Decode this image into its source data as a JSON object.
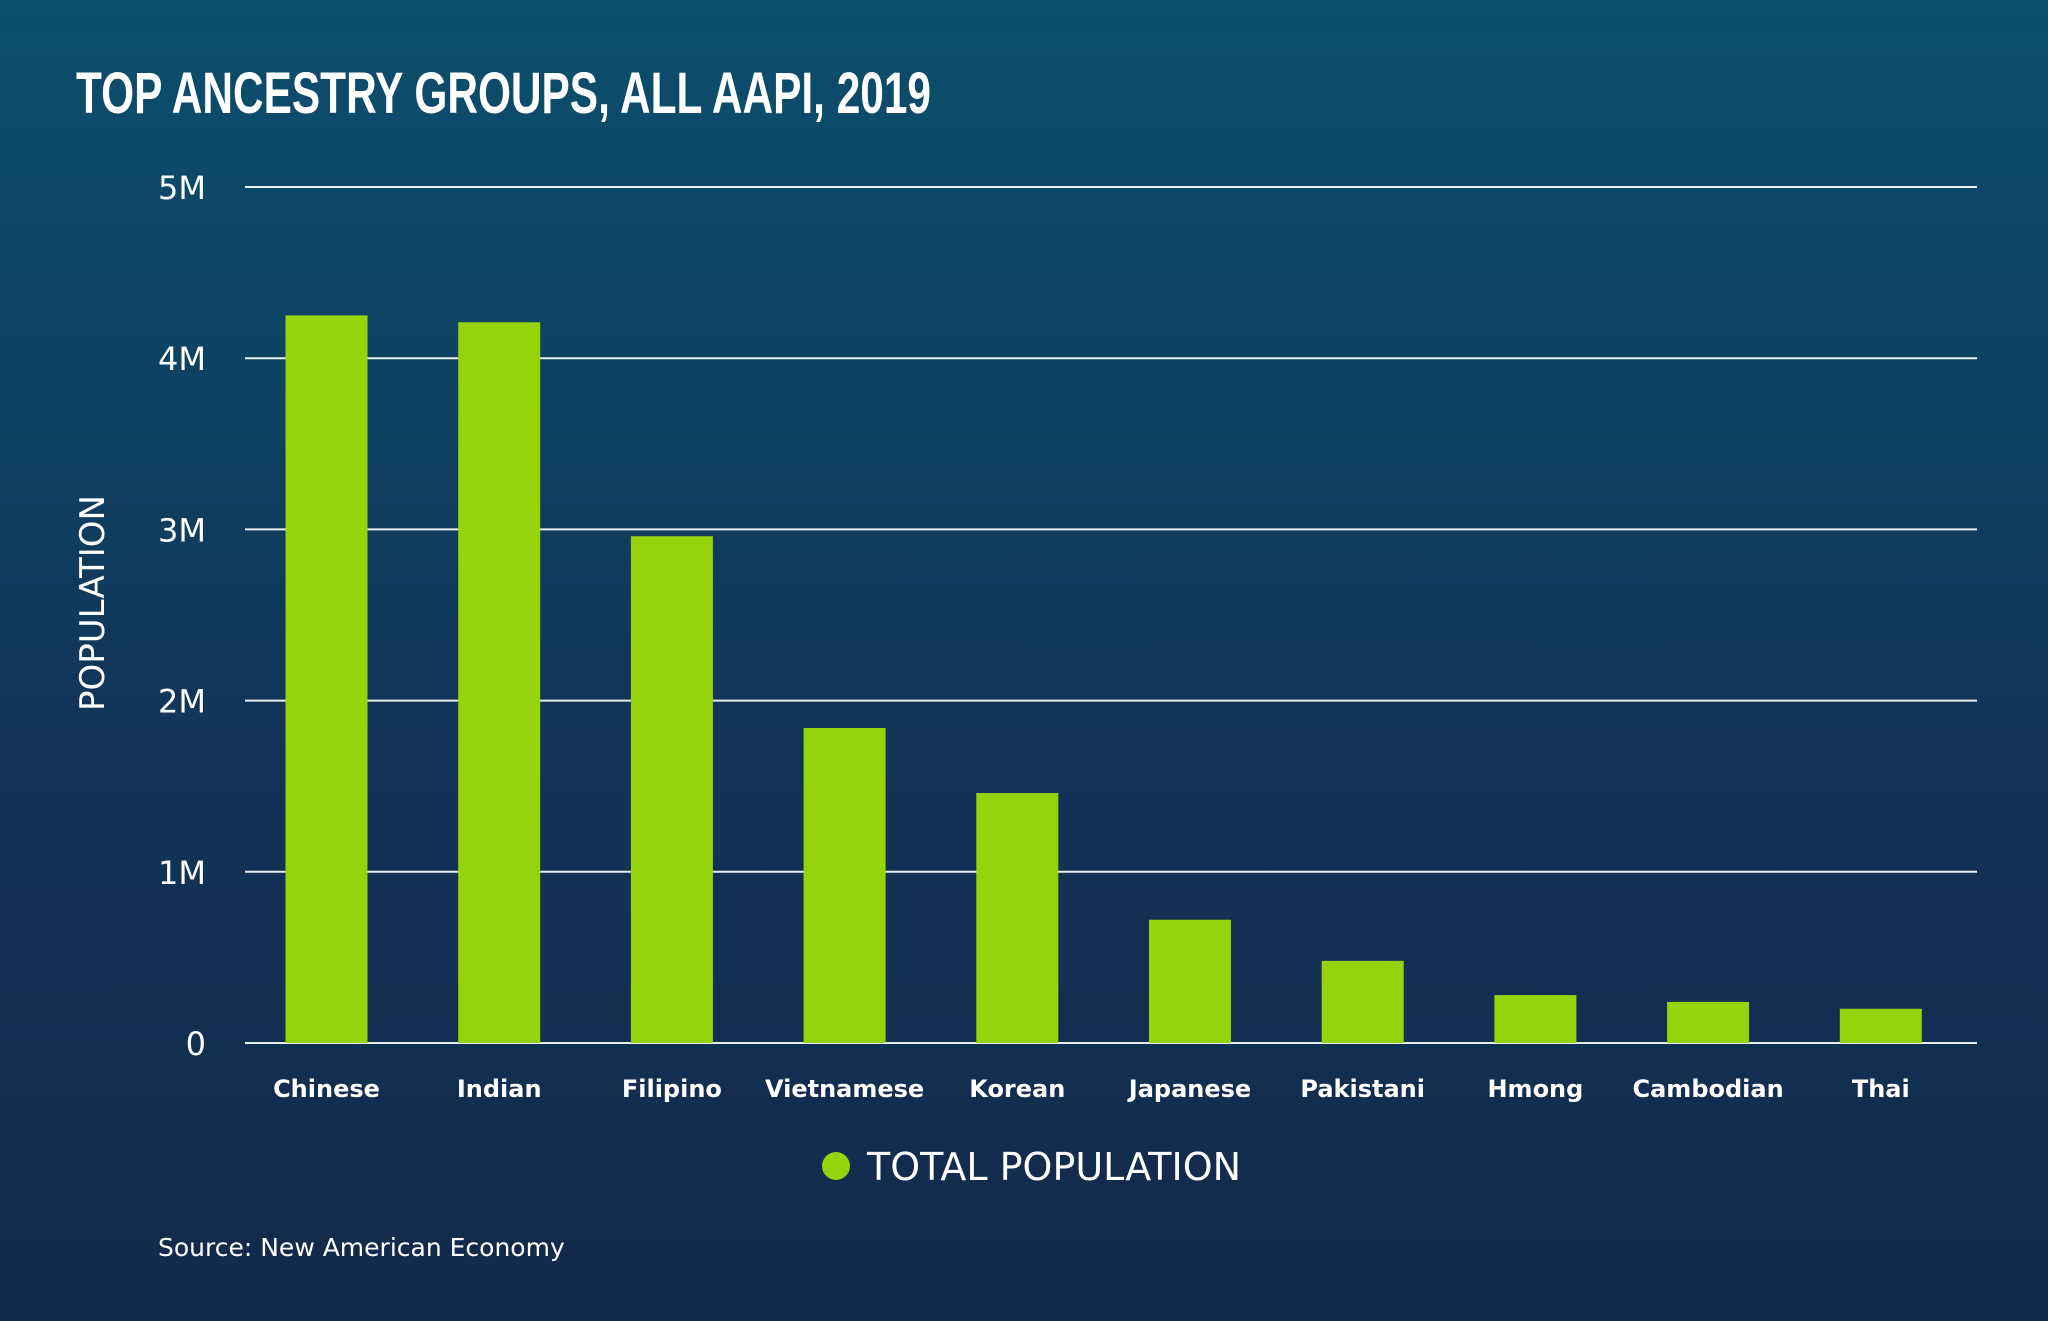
{
  "chart_data": {
    "type": "bar",
    "title": "TOP ANCESTRY GROUPS, ALL AAPI, 2019",
    "ylabel": "POPULATION",
    "xlabel": "",
    "categories": [
      "Chinese",
      "Indian",
      "Filipino",
      "Vietnamese",
      "Korean",
      "Japanese",
      "Pakistani",
      "Hmong",
      "Cambodian",
      "Thai"
    ],
    "series": [
      {
        "name": "TOTAL POPULATION",
        "values": [
          4250000,
          4210000,
          2960000,
          1840000,
          1460000,
          720000,
          480000,
          280000,
          240000,
          200000
        ]
      }
    ],
    "ylim": [
      0,
      5000000
    ],
    "yticks": [
      0,
      1000000,
      2000000,
      3000000,
      4000000,
      5000000
    ],
    "ytick_labels": [
      "0",
      "1M",
      "2M",
      "3M",
      "4M",
      "5M"
    ],
    "grid": true,
    "legend_position": "bottom",
    "source": "Source: New American Economy",
    "colors": {
      "bar": "#95d40a",
      "background_top": "#0b4f6c",
      "background_bottom": "#13294b",
      "text": "#ffffff"
    }
  }
}
